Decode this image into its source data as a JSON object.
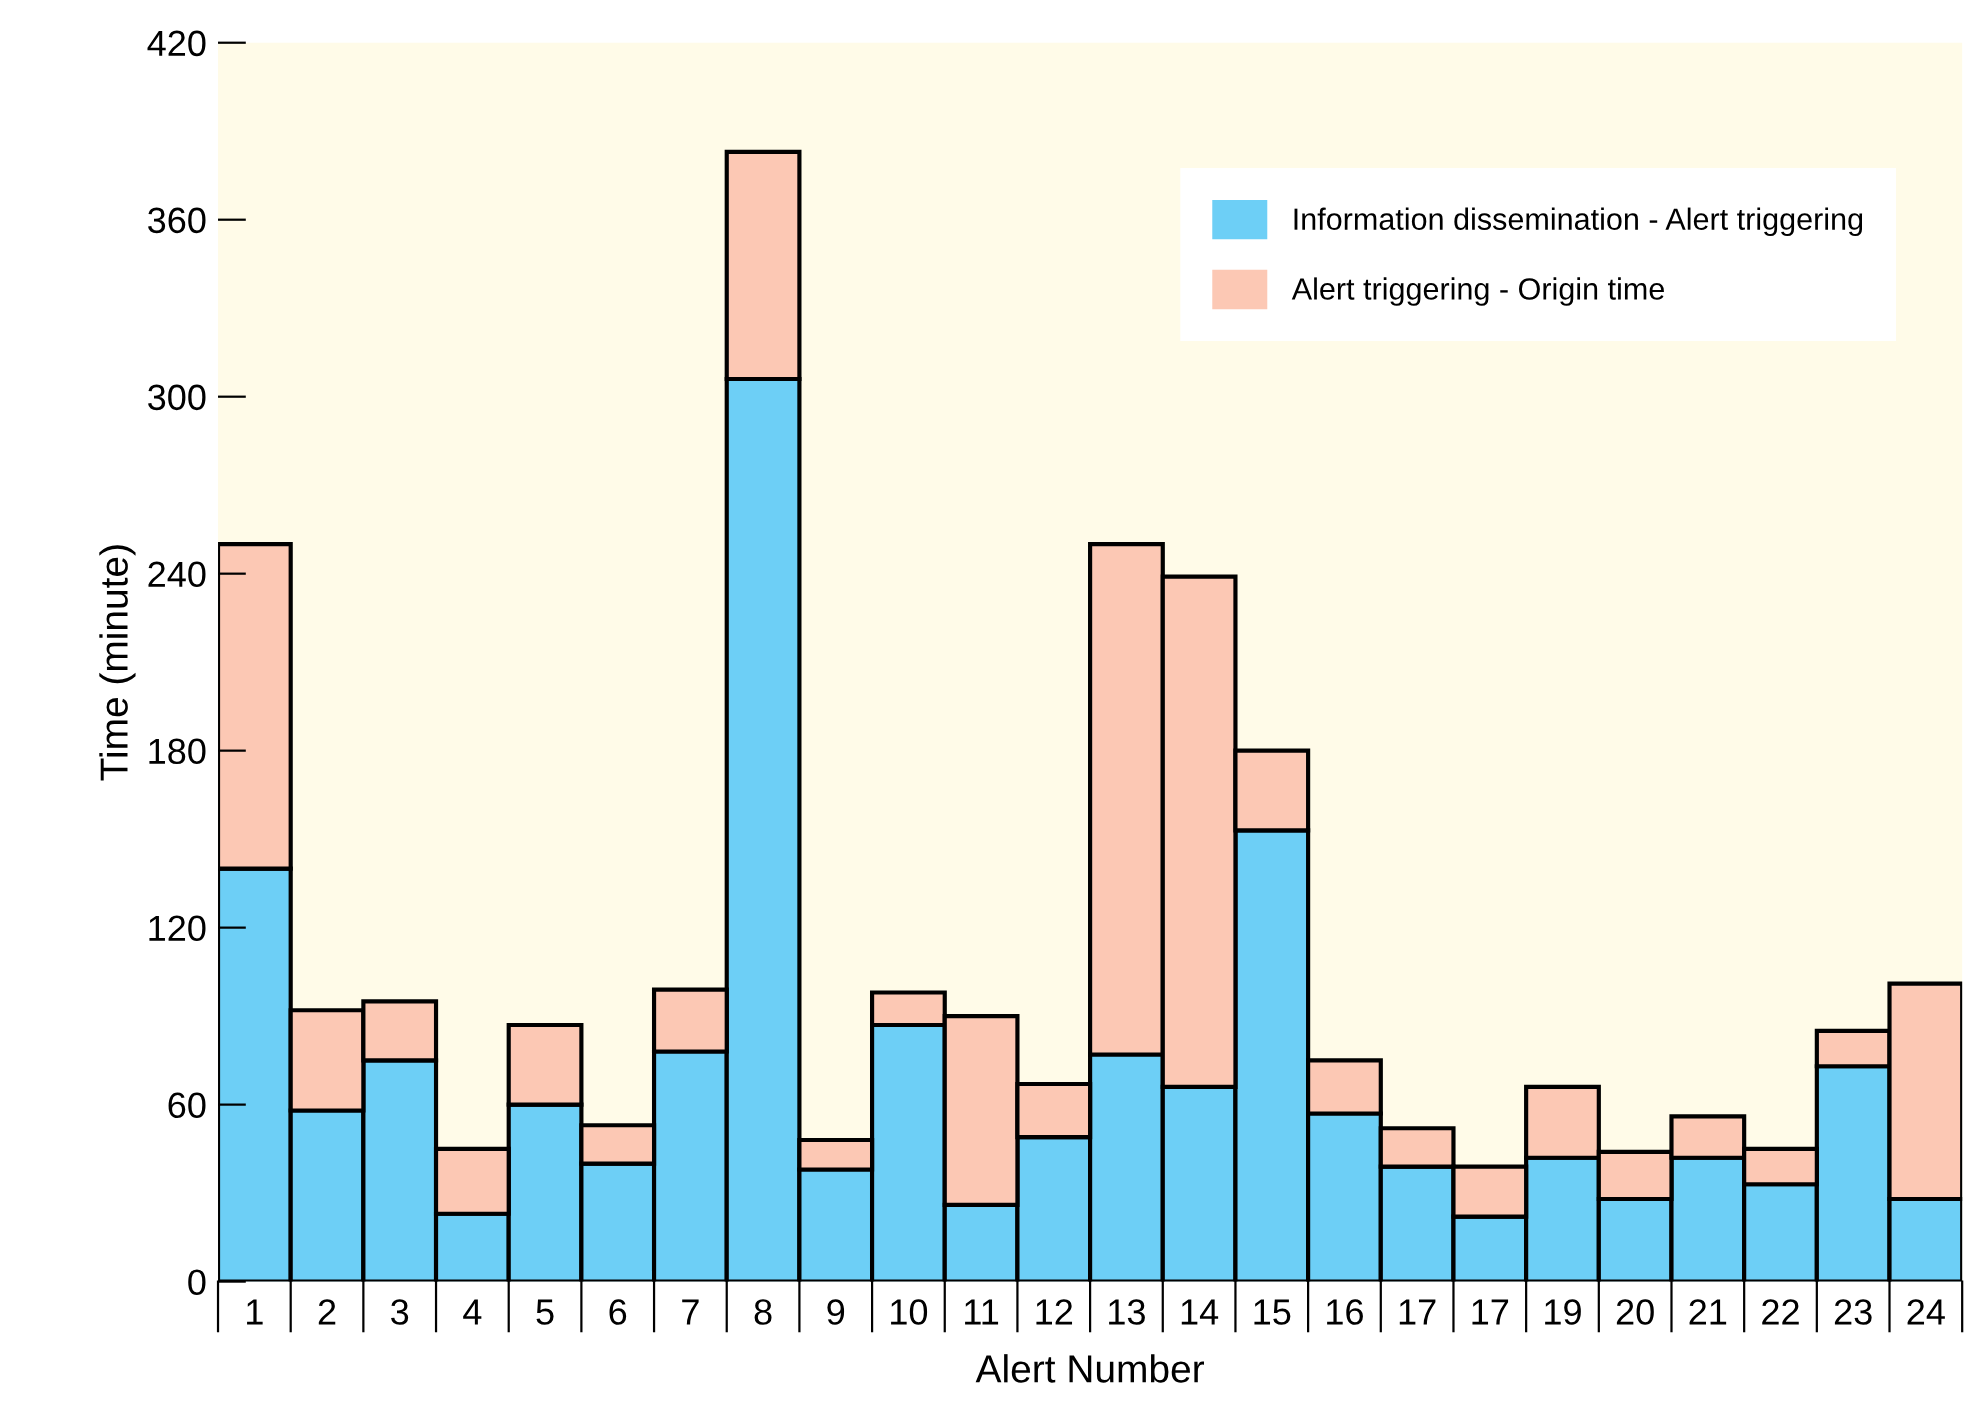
{
  "chart_data": {
    "type": "bar",
    "stacked": true,
    "xlabel": "Alert Number",
    "ylabel": "Time (minute)",
    "categories": [
      "1",
      "2",
      "3",
      "4",
      "5",
      "6",
      "7",
      "8",
      "9",
      "10",
      "11",
      "12",
      "13",
      "14",
      "15",
      "16",
      "17",
      "17",
      "19",
      "20",
      "21",
      "22",
      "23",
      "24"
    ],
    "series": [
      {
        "name": "Information dissemination - Alert triggering",
        "color": "#6dcff6",
        "values": [
          140,
          58,
          75,
          23,
          60,
          40,
          78,
          306,
          38,
          87,
          26,
          49,
          77,
          66,
          153,
          57,
          39,
          22,
          42,
          28,
          42,
          33,
          73,
          28
        ]
      },
      {
        "name": "Alert triggering - Origin time",
        "color": "#fcc8b4",
        "values": [
          110,
          34,
          20,
          22,
          27,
          13,
          21,
          77,
          10,
          11,
          64,
          18,
          173,
          173,
          27,
          18,
          13,
          17,
          24,
          16,
          14,
          12,
          12,
          73
        ]
      }
    ],
    "ylim": [
      0,
      420
    ],
    "yticks": [
      0,
      60,
      120,
      180,
      240,
      300,
      360,
      420
    ],
    "grid": false,
    "legend": "top right"
  }
}
